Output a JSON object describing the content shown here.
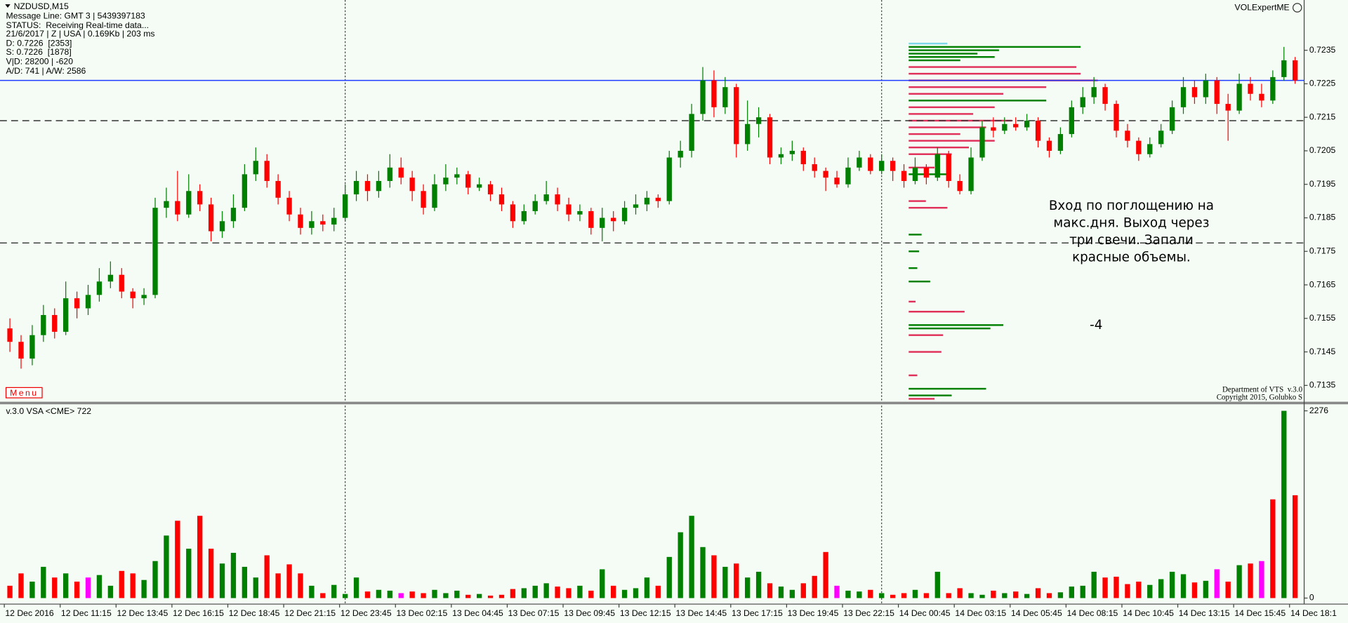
{
  "header": {
    "symbol": "NZDUSD,M15",
    "lines": [
      "Message Line: GMT 3 | 5439397183",
      "STATUS:  Receiving Real-time data...",
      "21/6/2017 | Z | USA | 0.169Kb | 203 ms",
      "D: 0.7226  [2353]",
      "S: 0.7226  [1878]",
      "V|D: 28200 | -620",
      "A/D: 741 | A/W: 2586"
    ],
    "indicator": "VOLExpertME",
    "menu": "Menu",
    "credits": [
      "Department of VTS  v.3.0",
      "Copyright 2015, Golubko S"
    ]
  },
  "chart_data": [
    {
      "type": "candlestick",
      "open": [
        0.7152,
        0.7148,
        0.7143,
        0.715,
        0.7156,
        0.7151,
        0.7161,
        0.7158,
        0.7162,
        0.7166,
        0.7168,
        0.7163,
        0.7161,
        0.7162,
        0.7188,
        0.719,
        0.7186,
        0.7193,
        0.7189,
        0.7181,
        0.7184,
        0.7188,
        0.7198,
        0.7202,
        0.7196,
        0.7191,
        0.7186,
        0.7182,
        0.7184,
        0.7183,
        0.7185,
        0.7192,
        0.7196,
        0.7193,
        0.7196,
        0.72,
        0.7197,
        0.7193,
        0.7188,
        0.7195,
        0.7197,
        0.7198,
        0.7194,
        0.7195,
        0.7192,
        0.7189,
        0.7184,
        0.7187,
        0.719,
        0.7192,
        0.7189,
        0.7186,
        0.7187,
        0.7182,
        0.7185,
        0.7184,
        0.7188,
        0.7189,
        0.7191,
        0.719,
        0.7203,
        0.7205,
        0.7216,
        0.7226,
        0.7218,
        0.7224,
        0.7207,
        0.7213,
        0.7215,
        0.7203,
        0.7204,
        0.7205,
        0.7201,
        0.7199,
        0.7197,
        0.7195,
        0.72,
        0.7203,
        0.7199,
        0.7202,
        0.7199,
        0.7196,
        0.72,
        0.7197,
        0.7204,
        0.7196,
        0.7193,
        0.7203,
        0.7212,
        0.7211,
        0.7213,
        0.7212,
        0.7214,
        0.7208,
        0.7205,
        0.721,
        0.7218,
        0.7221,
        0.7224,
        0.7219,
        0.7211,
        0.7208,
        0.7204,
        0.7207,
        0.7211,
        0.7218,
        0.7224,
        0.7221,
        0.7226,
        0.7219,
        0.7217,
        0.7225,
        0.7222,
        0.722,
        0.7227,
        0.7232
      ],
      "high": [
        0.7155,
        0.715,
        0.7153,
        0.7159,
        0.7158,
        0.7166,
        0.7163,
        0.7165,
        0.717,
        0.7172,
        0.717,
        0.7164,
        0.7164,
        0.7191,
        0.7194,
        0.7199,
        0.7198,
        0.7195,
        0.7191,
        0.7187,
        0.7192,
        0.7201,
        0.7206,
        0.7204,
        0.7198,
        0.7193,
        0.7188,
        0.7187,
        0.7186,
        0.7188,
        0.7195,
        0.7199,
        0.7198,
        0.7199,
        0.7204,
        0.7203,
        0.7199,
        0.7195,
        0.7198,
        0.7201,
        0.72,
        0.7199,
        0.7197,
        0.7196,
        0.7194,
        0.719,
        0.7189,
        0.7192,
        0.7196,
        0.7194,
        0.7191,
        0.7189,
        0.7188,
        0.7188,
        0.7187,
        0.719,
        0.7192,
        0.7193,
        0.7192,
        0.7205,
        0.7208,
        0.7219,
        0.723,
        0.7229,
        0.7227,
        0.7225,
        0.722,
        0.7218,
        0.7216,
        0.7206,
        0.7208,
        0.7206,
        0.7203,
        0.72,
        0.7199,
        0.7203,
        0.7205,
        0.7204,
        0.7204,
        0.7203,
        0.7201,
        0.7203,
        0.7201,
        0.7206,
        0.7205,
        0.7198,
        0.7206,
        0.7214,
        0.7215,
        0.7215,
        0.7215,
        0.7216,
        0.7215,
        0.7209,
        0.7212,
        0.722,
        0.7224,
        0.7227,
        0.7225,
        0.722,
        0.7213,
        0.7209,
        0.7209,
        0.7213,
        0.722,
        0.7227,
        0.7226,
        0.7228,
        0.7227,
        0.7222,
        0.7228,
        0.7227,
        0.7225,
        0.7229,
        0.7236,
        0.7233
      ],
      "low": [
        0.7145,
        0.714,
        0.7141,
        0.7148,
        0.7149,
        0.715,
        0.7155,
        0.7156,
        0.716,
        0.7164,
        0.7161,
        0.7158,
        0.7159,
        0.7161,
        0.7185,
        0.7184,
        0.7185,
        0.7187,
        0.7178,
        0.7179,
        0.7182,
        0.7187,
        0.7196,
        0.7194,
        0.7189,
        0.7184,
        0.718,
        0.718,
        0.7181,
        0.7181,
        0.7184,
        0.719,
        0.719,
        0.7191,
        0.7194,
        0.7195,
        0.719,
        0.7186,
        0.7187,
        0.7193,
        0.7195,
        0.7192,
        0.7193,
        0.719,
        0.7187,
        0.7182,
        0.7183,
        0.7186,
        0.7189,
        0.7187,
        0.7184,
        0.7184,
        0.718,
        0.7178,
        0.7181,
        0.7183,
        0.7186,
        0.7187,
        0.7188,
        0.7189,
        0.72,
        0.7203,
        0.7214,
        0.7215,
        0.7216,
        0.7203,
        0.7205,
        0.7209,
        0.7201,
        0.7201,
        0.7202,
        0.7199,
        0.7197,
        0.7193,
        0.7194,
        0.7194,
        0.7199,
        0.7198,
        0.7198,
        0.7196,
        0.7194,
        0.7195,
        0.7195,
        0.7196,
        0.7194,
        0.7192,
        0.7192,
        0.7202,
        0.7209,
        0.721,
        0.7211,
        0.7211,
        0.7206,
        0.7203,
        0.7204,
        0.7209,
        0.7216,
        0.7219,
        0.7217,
        0.7209,
        0.7206,
        0.7202,
        0.7203,
        0.7206,
        0.721,
        0.7216,
        0.7219,
        0.7219,
        0.7216,
        0.7208,
        0.7216,
        0.722,
        0.7218,
        0.7219,
        0.7226,
        0.7225
      ],
      "close": [
        0.7148,
        0.7143,
        0.715,
        0.7156,
        0.7151,
        0.7161,
        0.7158,
        0.7162,
        0.7166,
        0.7168,
        0.7163,
        0.7161,
        0.7162,
        0.7188,
        0.719,
        0.7186,
        0.7193,
        0.7189,
        0.7181,
        0.7184,
        0.7188,
        0.7198,
        0.7202,
        0.7196,
        0.7191,
        0.7186,
        0.7182,
        0.7184,
        0.7183,
        0.7185,
        0.7192,
        0.7196,
        0.7193,
        0.7196,
        0.72,
        0.7197,
        0.7193,
        0.7188,
        0.7195,
        0.7197,
        0.7198,
        0.7194,
        0.7195,
        0.7192,
        0.7189,
        0.7184,
        0.7187,
        0.719,
        0.7192,
        0.7189,
        0.7186,
        0.7187,
        0.7182,
        0.7185,
        0.7184,
        0.7188,
        0.7189,
        0.7191,
        0.719,
        0.7203,
        0.7205,
        0.7216,
        0.7226,
        0.7218,
        0.7224,
        0.7207,
        0.7213,
        0.7215,
        0.7203,
        0.7204,
        0.7205,
        0.7201,
        0.7199,
        0.7197,
        0.7195,
        0.72,
        0.7203,
        0.7199,
        0.7202,
        0.7199,
        0.7196,
        0.72,
        0.7197,
        0.7204,
        0.7196,
        0.7193,
        0.7203,
        0.7212,
        0.7211,
        0.7213,
        0.7212,
        0.7214,
        0.7208,
        0.7205,
        0.721,
        0.7218,
        0.7221,
        0.7224,
        0.7219,
        0.7211,
        0.7208,
        0.7204,
        0.7207,
        0.7211,
        0.7218,
        0.7224,
        0.7221,
        0.7226,
        0.7219,
        0.7217,
        0.7225,
        0.7222,
        0.722,
        0.7227,
        0.7232,
        0.7226
      ],
      "up_color": "#008000",
      "down_color": "#ff0000",
      "ylim": [
        0.713,
        0.725
      ],
      "yticks": [
        0.7135,
        0.7145,
        0.7155,
        0.7165,
        0.7175,
        0.7185,
        0.7195,
        0.7205,
        0.7215,
        0.7225,
        0.7235
      ],
      "hlines": [
        {
          "value": 0.7226,
          "color": "#1e3cff",
          "style": "solid"
        },
        {
          "value": 0.7214,
          "color": "#333333",
          "style": "dashed"
        },
        {
          "value": 0.71775,
          "color": "#333333",
          "style": "dashed"
        }
      ],
      "vlines": [
        30,
        78
      ],
      "volume_profile": {
        "levels": [
          0.7237,
          0.7236,
          0.7235,
          0.7234,
          0.7233,
          0.7232,
          0.723,
          0.7228,
          0.7226,
          0.7224,
          0.7222,
          0.722,
          0.7218,
          0.7216,
          0.7214,
          0.7212,
          0.721,
          0.7208,
          0.7206,
          0.7204,
          0.72,
          0.7198,
          0.719,
          0.7188,
          0.718,
          0.7175,
          0.717,
          0.7166,
          0.716,
          0.7157,
          0.7153,
          0.7152,
          0.715,
          0.7145,
          0.7138,
          0.7134,
          0.7132,
          0.7131
        ],
        "values": [
          45,
          200,
          105,
          80,
          100,
          60,
          195,
          200,
          220,
          160,
          110,
          160,
          100,
          75,
          120,
          90,
          60,
          100,
          70,
          50,
          30,
          45,
          20,
          45,
          15,
          12,
          10,
          25,
          8,
          65,
          110,
          95,
          40,
          38,
          10,
          90,
          50,
          30
        ],
        "colors": [
          "#7fd8ea",
          "#008000",
          "#008000",
          "#008000",
          "#008000",
          "#008000",
          "#e0305a",
          "#e0305a",
          "#e0305a",
          "#e0305a",
          "#e0305a",
          "#008000",
          "#e0305a",
          "#e0305a",
          "#e0305a",
          "#e0305a",
          "#e0305a",
          "#e0305a",
          "#e0305a",
          "#e0305a",
          "#e0305a",
          "#008000",
          "#e0305a",
          "#e0305a",
          "#008000",
          "#008000",
          "#008000",
          "#008000",
          "#e0305a",
          "#e0305a",
          "#008000",
          "#008000",
          "#e0305a",
          "#e0305a",
          "#e0305a",
          "#008000",
          "#008000",
          "#e0305a"
        ],
        "xlim": [
          0,
          460
        ]
      },
      "annotation": [
        "Вход по поглощению на",
        "макс.дня. Выход через",
        "три свечи. Запали",
        "красные объемы."
      ],
      "note": "-4"
    },
    {
      "type": "bar",
      "title": "v.3.0 VSA <CME> 722",
      "values": [
        150,
        300,
        200,
        380,
        250,
        300,
        200,
        250,
        280,
        150,
        330,
        300,
        220,
        450,
        760,
        940,
        600,
        1000,
        600,
        420,
        550,
        380,
        250,
        520,
        300,
        410,
        300,
        150,
        60,
        160,
        50,
        250,
        80,
        100,
        90,
        60,
        80,
        60,
        100,
        60,
        90,
        40,
        50,
        30,
        40,
        110,
        120,
        150,
        180,
        140,
        120,
        150,
        90,
        350,
        150,
        100,
        120,
        250,
        150,
        500,
        800,
        1000,
        620,
        520,
        380,
        420,
        250,
        320,
        180,
        140,
        100,
        180,
        270,
        560,
        150,
        90,
        80,
        100,
        60,
        40,
        60,
        100,
        60,
        320,
        60,
        120,
        60,
        40,
        90,
        60,
        80,
        50,
        120,
        60,
        70,
        140,
        150,
        320,
        250,
        260,
        170,
        200,
        160,
        230,
        320,
        290,
        190,
        210,
        350,
        200,
        400,
        420,
        450,
        1200,
        2276,
        1250
      ],
      "colors": [
        "red",
        "red",
        "green",
        "green",
        "red",
        "green",
        "red",
        "magenta",
        "green",
        "green",
        "red",
        "red",
        "green",
        "green",
        "green",
        "red",
        "green",
        "red",
        "red",
        "green",
        "green",
        "green",
        "green",
        "red",
        "red",
        "red",
        "red",
        "green",
        "red",
        "green",
        "green",
        "green",
        "red",
        "green",
        "green",
        "magenta",
        "red",
        "red",
        "green",
        "green",
        "green",
        "red",
        "green",
        "red",
        "red",
        "red",
        "green",
        "green",
        "green",
        "red",
        "red",
        "green",
        "red",
        "green",
        "red",
        "green",
        "green",
        "green",
        "red",
        "green",
        "green",
        "green",
        "green",
        "red",
        "green",
        "red",
        "green",
        "green",
        "red",
        "green",
        "green",
        "red",
        "red",
        "red",
        "magenta",
        "green",
        "green",
        "red",
        "green",
        "red",
        "red",
        "green",
        "red",
        "green",
        "red",
        "red",
        "green",
        "green",
        "red",
        "green",
        "red",
        "green",
        "red",
        "red",
        "green",
        "green",
        "green",
        "green",
        "red",
        "red",
        "red",
        "red",
        "green",
        "green",
        "green",
        "green",
        "red",
        "green",
        "magenta",
        "red",
        "green",
        "red",
        "magenta",
        "red",
        "green",
        "red"
      ],
      "ylim": [
        0,
        2350
      ],
      "yticks": [
        0,
        2276
      ],
      "xticks": [
        {
          "value": 0,
          "label": "12 Dec 2016"
        },
        {
          "value": 5,
          "label": "12 Dec 11:15"
        },
        {
          "value": 10,
          "label": "12 Dec 13:45"
        },
        {
          "value": 15,
          "label": "12 Dec 16:15"
        },
        {
          "value": 20,
          "label": "12 Dec 18:45"
        },
        {
          "value": 25,
          "label": "12 Dec 21:15"
        },
        {
          "value": 30,
          "label": "12 Dec 23:45"
        },
        {
          "value": 35,
          "label": "13 Dec 02:15"
        },
        {
          "value": 40,
          "label": "13 Dec 04:45"
        },
        {
          "value": 45,
          "label": "13 Dec 07:15"
        },
        {
          "value": 50,
          "label": "13 Dec 09:45"
        },
        {
          "value": 55,
          "label": "13 Dec 12:15"
        },
        {
          "value": 60,
          "label": "13 Dec 14:45"
        },
        {
          "value": 65,
          "label": "13 Dec 17:15"
        },
        {
          "value": 70,
          "label": "13 Dec 19:45"
        },
        {
          "value": 75,
          "label": "13 Dec 22:15"
        },
        {
          "value": 80,
          "label": "14 Dec 00:45"
        },
        {
          "value": 85,
          "label": "14 Dec 03:15"
        },
        {
          "value": 90,
          "label": "14 Dec 05:45"
        },
        {
          "value": 95,
          "label": "14 Dec 08:15"
        },
        {
          "value": 100,
          "label": "14 Dec 10:45"
        },
        {
          "value": 105,
          "label": "14 Dec 13:15"
        },
        {
          "value": 110,
          "label": "14 Dec 15:45"
        },
        {
          "value": 115,
          "label": "14 Dec 18:1"
        }
      ]
    }
  ]
}
